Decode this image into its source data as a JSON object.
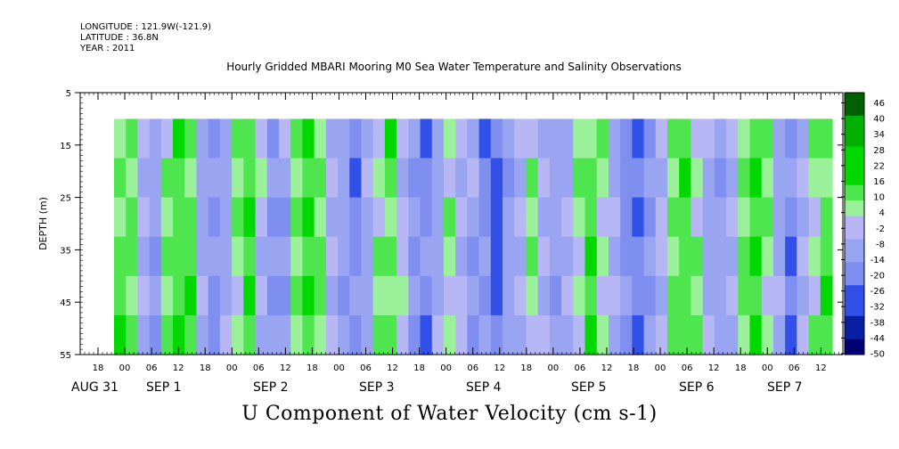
{
  "meta": {
    "longitude": "LONGITUDE : 121.9W(-121.9)",
    "latitude": "LATITUDE : 36.8N",
    "year": "YEAR : 2011"
  },
  "chart_data": {
    "type": "heatmap",
    "title": "Hourly Gridded MBARI Mooring M0 Sea Water Temperature and Salinity Observations",
    "xlabel": "U Component of Water Velocity (cm s-1)",
    "ylabel": "DEPTH (m)",
    "ylim": [
      5,
      55
    ],
    "y_inverted": true,
    "y_ticks": [
      5,
      15,
      25,
      35,
      45,
      55
    ],
    "x_hour_ticks": [
      "18",
      "00",
      "06",
      "12",
      "18",
      "00",
      "06",
      "12",
      "18",
      "00",
      "06",
      "12",
      "18",
      "00",
      "06",
      "12",
      "18",
      "00",
      "06",
      "12",
      "18",
      "00",
      "06",
      "12",
      "18",
      "00",
      "06",
      "12"
    ],
    "date_labels": [
      "AUG 31",
      "SEP  1",
      "SEP  2",
      "SEP  3",
      "SEP  4",
      "SEP  5",
      "SEP  6",
      "SEP  7"
    ],
    "data_depth_range": [
      10,
      55
    ],
    "colorbar": {
      "labels": [
        46,
        40,
        34,
        28,
        22,
        16,
        10,
        4,
        -2,
        -8,
        -14,
        -20,
        -26,
        -32,
        -38,
        -44,
        -50
      ],
      "min": -50,
      "max": 50
    },
    "bands_cm_s": [
      12,
      8,
      -6,
      -14,
      6,
      14,
      10,
      -8,
      -18,
      -10,
      4,
      14,
      -4,
      -16,
      -12,
      6,
      16,
      8,
      -6,
      -14,
      -20,
      -8,
      4,
      10,
      -4,
      -16,
      -22,
      -10,
      2,
      -4,
      -12,
      -20,
      -26,
      -14,
      -6,
      4,
      -6,
      -14,
      -8,
      6,
      12,
      4,
      -10,
      -18,
      -24,
      -16,
      -6,
      10,
      14,
      4,
      -8,
      -14,
      -6,
      8,
      16,
      6,
      -10,
      -20,
      -8,
      6,
      10
    ]
  },
  "colors": {
    "green_high": "#00d800",
    "green_mid": "#4ee54e",
    "green_low": "#9af19a",
    "blue_low": "#b7b7f5",
    "blue_mid": "#7f8ff0",
    "blue_high": "#3050e8",
    "navy": "#000070"
  }
}
